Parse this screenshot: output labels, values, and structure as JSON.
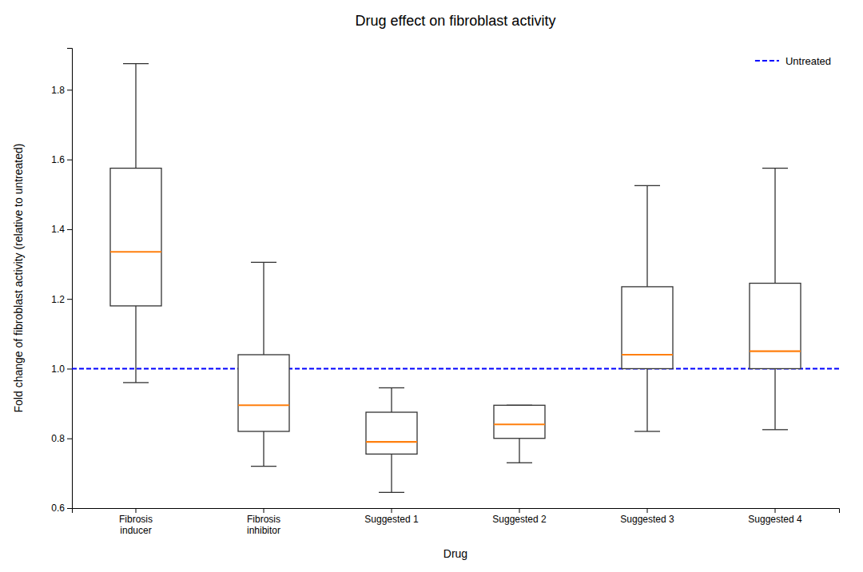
{
  "chart_data": {
    "type": "box",
    "title": "Drug effect on fibroblast activity",
    "x_label": "Drug",
    "y_label": "Fold change of fibroblast activity (relative to untreated)",
    "categories": [
      "Fibrosis\ninducer",
      "Fibrosis\ninhibitor",
      "Suggested 1",
      "Suggested 2",
      "Suggested 3",
      "Suggested 4"
    ],
    "boxes": [
      {
        "q1": 1.18,
        "median": 1.335,
        "q3": 1.575,
        "whislo": 0.96,
        "whishi": 1.875
      },
      {
        "q1": 0.82,
        "median": 0.895,
        "q3": 1.04,
        "whislo": 0.72,
        "whishi": 1.305
      },
      {
        "q1": 0.755,
        "median": 0.79,
        "q3": 0.875,
        "whislo": 0.645,
        "whishi": 0.945
      },
      {
        "q1": 0.8,
        "median": 0.84,
        "q3": 0.895,
        "whislo": 0.73,
        "whishi": 0.895
      },
      {
        "q1": 1.0,
        "median": 1.04,
        "q3": 1.235,
        "whislo": 0.82,
        "whishi": 1.525
      },
      {
        "q1": 1.0,
        "median": 1.05,
        "q3": 1.245,
        "whislo": 0.825,
        "whishi": 1.575
      }
    ],
    "reference_lines": [
      {
        "name": "Untreated",
        "value": 1.0,
        "color": "blue",
        "line_style": "dashed"
      }
    ],
    "ylim": [
      0.6,
      1.92
    ],
    "yticks": [
      0.6,
      0.8,
      {
        "value": 1.0,
        "label": "1.0"
      },
      1.2,
      1.4,
      1.6,
      1.8
    ],
    "grid": false,
    "legend": "upper right"
  }
}
